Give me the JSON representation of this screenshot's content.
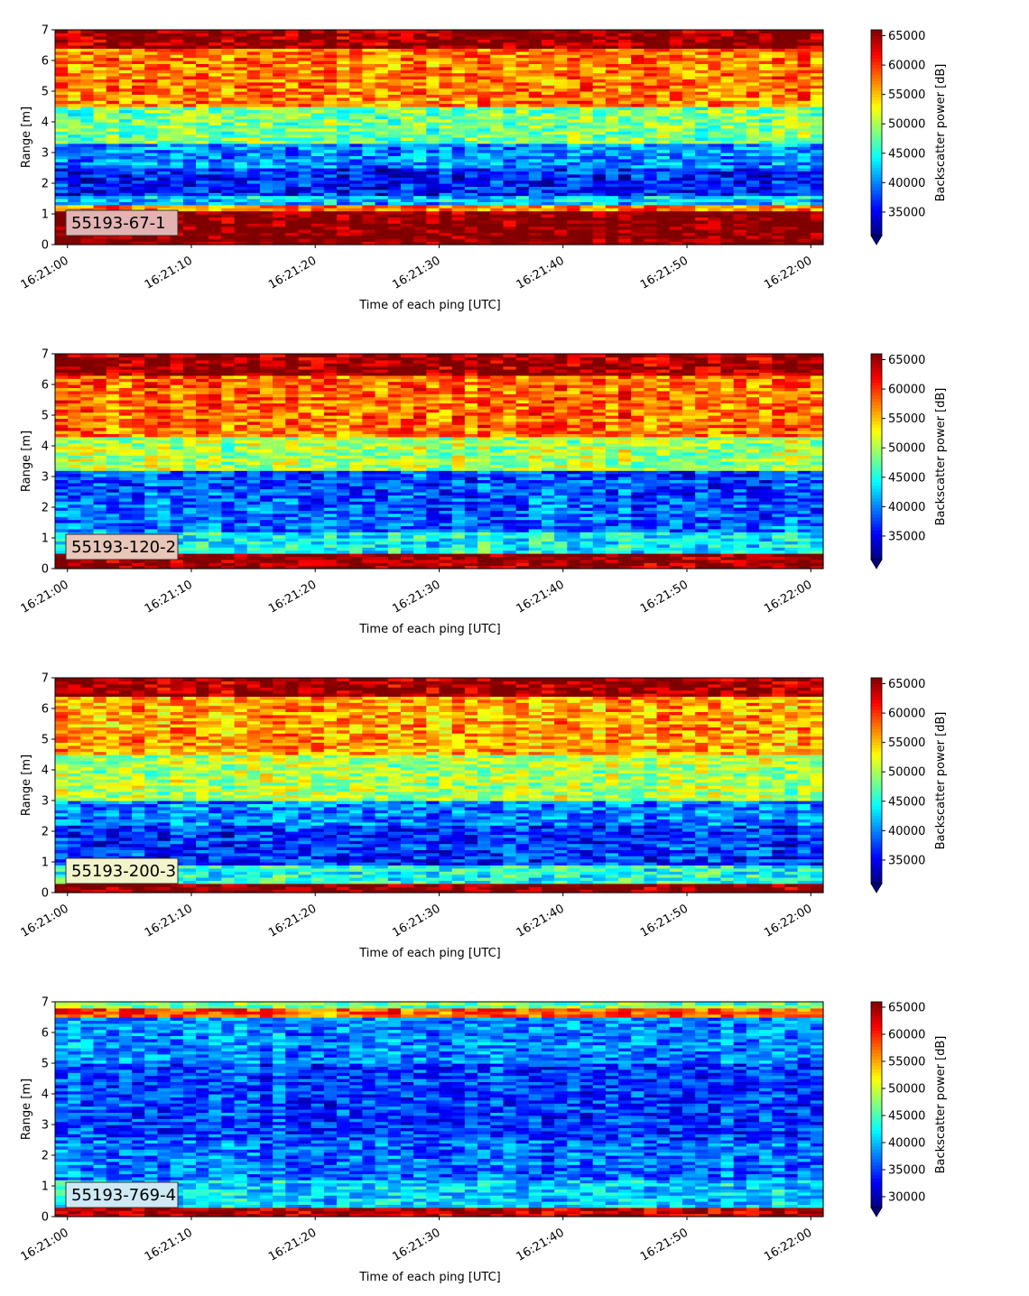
{
  "chart_data": [
    {
      "type": "heatmap",
      "title": "",
      "xlabel": "Time of each ping [UTC]",
      "ylabel": "Range [m]",
      "x_ticks": [
        "16:21:00",
        "16:21:10",
        "16:21:20",
        "16:21:30",
        "16:21:40",
        "16:21:50",
        "16:22:00"
      ],
      "x_range_seconds": [
        -1,
        61
      ],
      "y_ticks": [
        0,
        1,
        2,
        3,
        4,
        5,
        6,
        7
      ],
      "ylim": [
        0,
        7
      ],
      "colorbar_label": "Backscatter power [dB]",
      "colorbar_ticks": [
        35000,
        40000,
        45000,
        50000,
        55000,
        60000,
        65000
      ],
      "color_range": [
        31000,
        66000
      ],
      "colormap": "jet",
      "extend": "min",
      "label_box": {
        "text": "55193-67-1",
        "color": "#e3b3b3"
      },
      "profile_bands": [
        {
          "range_m": [
            0.0,
            0.3
          ],
          "power": 66000
        },
        {
          "range_m": [
            0.3,
            1.1
          ],
          "power": 66000
        },
        {
          "range_m": [
            1.1,
            1.3
          ],
          "power": 57000
        },
        {
          "range_m": [
            1.3,
            1.6
          ],
          "power": 42000
        },
        {
          "range_m": [
            1.6,
            2.5
          ],
          "power": 36000
        },
        {
          "range_m": [
            2.5,
            3.3
          ],
          "power": 40000
        },
        {
          "range_m": [
            3.3,
            4.5
          ],
          "power": 48000
        },
        {
          "range_m": [
            4.5,
            6.4
          ],
          "power": 57000
        },
        {
          "range_m": [
            6.4,
            7.0
          ],
          "power": 65000
        }
      ]
    },
    {
      "type": "heatmap",
      "title": "",
      "xlabel": "Time of each ping [UTC]",
      "ylabel": "Range [m]",
      "x_ticks": [
        "16:21:00",
        "16:21:10",
        "16:21:20",
        "16:21:30",
        "16:21:40",
        "16:21:50",
        "16:22:00"
      ],
      "x_range_seconds": [
        -1,
        61
      ],
      "y_ticks": [
        0,
        1,
        2,
        3,
        4,
        5,
        6,
        7
      ],
      "ylim": [
        0,
        7
      ],
      "colorbar_label": "Backscatter power [dB]",
      "colorbar_ticks": [
        35000,
        40000,
        45000,
        50000,
        55000,
        60000,
        65000
      ],
      "color_range": [
        31000,
        66000
      ],
      "colormap": "jet",
      "extend": "min",
      "label_box": {
        "text": "55193-120-2",
        "color": "#e8c6b8"
      },
      "profile_bands": [
        {
          "range_m": [
            0.0,
            0.5
          ],
          "power": 66000
        },
        {
          "range_m": [
            0.5,
            1.2
          ],
          "power": 44000
        },
        {
          "range_m": [
            1.2,
            2.3
          ],
          "power": 39000
        },
        {
          "range_m": [
            2.3,
            3.2
          ],
          "power": 38000
        },
        {
          "range_m": [
            3.2,
            4.3
          ],
          "power": 50000
        },
        {
          "range_m": [
            4.3,
            6.3
          ],
          "power": 58000
        },
        {
          "range_m": [
            6.3,
            7.0
          ],
          "power": 65000
        }
      ]
    },
    {
      "type": "heatmap",
      "title": "",
      "xlabel": "Time of each ping [UTC]",
      "ylabel": "Range [m]",
      "x_ticks": [
        "16:21:00",
        "16:21:10",
        "16:21:20",
        "16:21:30",
        "16:21:40",
        "16:21:50",
        "16:22:00"
      ],
      "x_range_seconds": [
        -1,
        61
      ],
      "y_ticks": [
        0,
        1,
        2,
        3,
        4,
        5,
        6,
        7
      ],
      "ylim": [
        0,
        7
      ],
      "colorbar_label": "Backscatter power [dB]",
      "colorbar_ticks": [
        35000,
        40000,
        45000,
        50000,
        55000,
        60000,
        65000
      ],
      "color_range": [
        31000,
        66000
      ],
      "colormap": "jet",
      "extend": "min",
      "label_box": {
        "text": "55193-200-3",
        "color": "#f4f4cc"
      },
      "profile_bands": [
        {
          "range_m": [
            0.0,
            0.3
          ],
          "power": 66000
        },
        {
          "range_m": [
            0.3,
            0.9
          ],
          "power": 45000
        },
        {
          "range_m": [
            0.9,
            2.2
          ],
          "power": 37000
        },
        {
          "range_m": [
            2.2,
            3.0
          ],
          "power": 40000
        },
        {
          "range_m": [
            3.0,
            4.5
          ],
          "power": 50000
        },
        {
          "range_m": [
            4.5,
            6.4
          ],
          "power": 56000
        },
        {
          "range_m": [
            6.4,
            7.0
          ],
          "power": 65000
        }
      ]
    },
    {
      "type": "heatmap",
      "title": "",
      "xlabel": "Time of each ping [UTC]",
      "ylabel": "Range [m]",
      "x_ticks": [
        "16:21:00",
        "16:21:10",
        "16:21:20",
        "16:21:30",
        "16:21:40",
        "16:21:50",
        "16:22:00"
      ],
      "x_range_seconds": [
        -1,
        61
      ],
      "y_ticks": [
        0,
        1,
        2,
        3,
        4,
        5,
        6,
        7
      ],
      "ylim": [
        0,
        7
      ],
      "colorbar_label": "Backscatter power [dB]",
      "colorbar_ticks": [
        30000,
        35000,
        40000,
        45000,
        50000,
        55000,
        60000,
        65000
      ],
      "color_range": [
        28000,
        66000
      ],
      "colormap": "jet",
      "extend": "min",
      "label_box": {
        "text": "55193-769-4",
        "color": "#cde9f4"
      },
      "profile_bands": [
        {
          "range_m": [
            0.0,
            0.3
          ],
          "power": 64000
        },
        {
          "range_m": [
            0.3,
            1.2
          ],
          "power": 41000
        },
        {
          "range_m": [
            1.2,
            2.5
          ],
          "power": 37000
        },
        {
          "range_m": [
            2.5,
            5.0
          ],
          "power": 35000
        },
        {
          "range_m": [
            5.0,
            6.5
          ],
          "power": 38000
        },
        {
          "range_m": [
            6.5,
            6.8
          ],
          "power": 58000
        },
        {
          "range_m": [
            6.8,
            7.0
          ],
          "power": 46000
        }
      ]
    }
  ]
}
